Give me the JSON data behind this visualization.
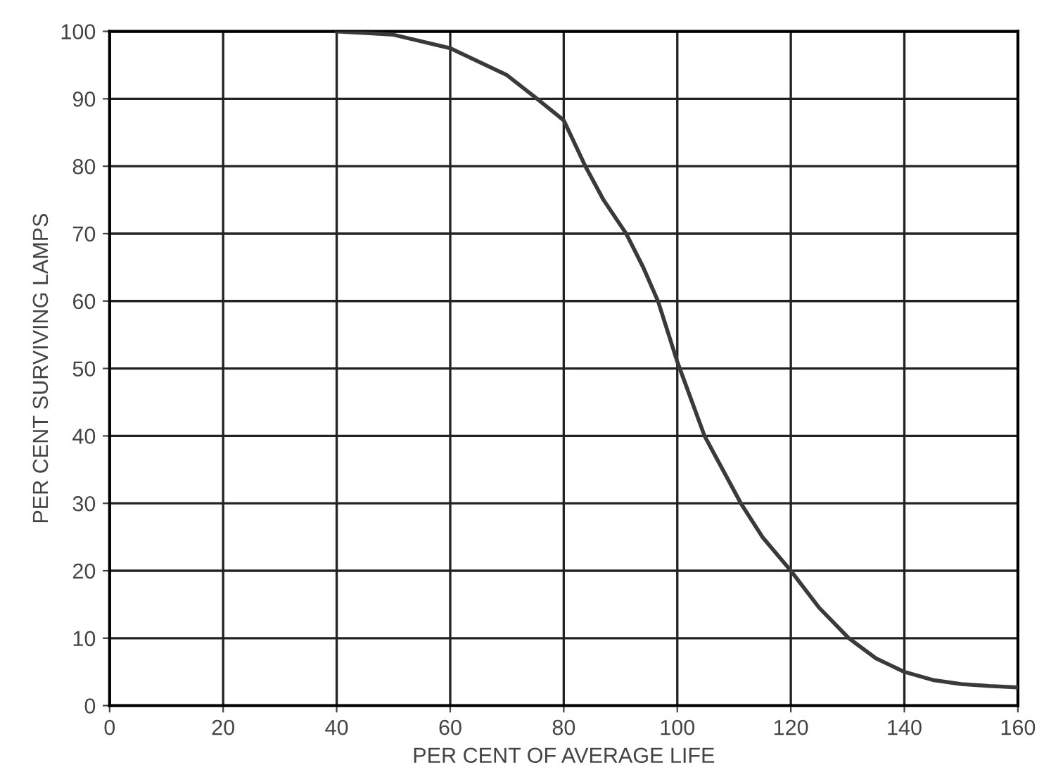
{
  "chart_data": {
    "type": "line",
    "xlabel": "PER CENT OF AVERAGE LIFE",
    "ylabel": "PER CENT SURVIVING LAMPS",
    "series": [
      {
        "color": "#3a3a3a",
        "x": [
          40,
          50,
          60,
          70,
          75.3,
          80,
          83.8,
          87,
          91,
          94,
          96.6,
          100,
          104.8,
          111.2,
          115,
          120,
          125,
          130.2,
          135,
          140,
          145,
          150,
          155,
          160
        ],
        "values": [
          100,
          99.5,
          97.5,
          93.5,
          90,
          86.8,
          80,
          75,
          70,
          65,
          60,
          51,
          40,
          30,
          25,
          20,
          14.5,
          10,
          7,
          5,
          3.8,
          3.2,
          2.9,
          2.7
        ]
      }
    ],
    "xlim": [
      0,
      160
    ],
    "ylim": [
      0,
      100
    ],
    "xticks": [
      0,
      20,
      40,
      60,
      80,
      100,
      120,
      140,
      160
    ],
    "yticks": [
      0,
      10,
      20,
      30,
      40,
      50,
      60,
      70,
      80,
      90,
      100
    ],
    "grid": true,
    "marker": "none",
    "line_style": "solid"
  }
}
